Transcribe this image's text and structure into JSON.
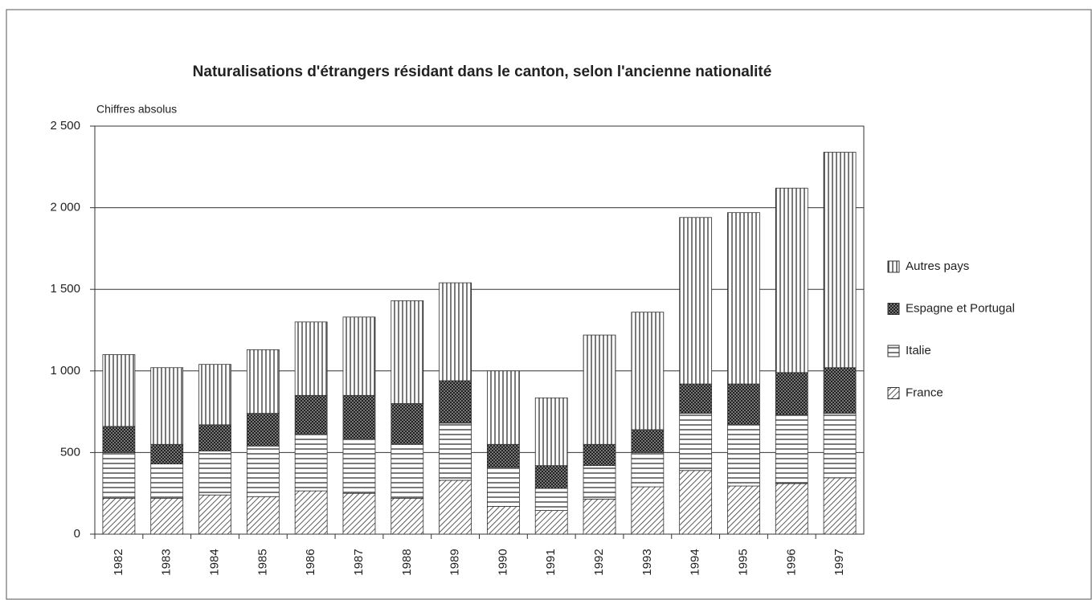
{
  "chart_data": {
    "type": "stacked-bar",
    "title": "Naturalisations d'étrangers résidant dans le canton, selon l'ancienne nationalité",
    "ylabel": "Chiffres absolus",
    "categories": [
      "1982",
      "1983",
      "1984",
      "1985",
      "1986",
      "1987",
      "1988",
      "1989",
      "1990",
      "1991",
      "1992",
      "1993",
      "1994",
      "1995",
      "1996",
      "1997"
    ],
    "series": [
      {
        "name": "France",
        "color": "#333333",
        "pattern": "diagonal",
        "values": [
          220,
          220,
          240,
          230,
          265,
          250,
          220,
          330,
          170,
          145,
          215,
          290,
          390,
          295,
          310,
          345
        ]
      },
      {
        "name": "Italie",
        "color": "#333333",
        "pattern": "horizontal",
        "values": [
          280,
          210,
          270,
          310,
          345,
          330,
          330,
          350,
          240,
          135,
          205,
          210,
          350,
          375,
          420,
          395
        ]
      },
      {
        "name": "Espagne et Portugal",
        "color": "#333333",
        "pattern": "crosshatch",
        "values": [
          160,
          120,
          160,
          200,
          240,
          270,
          250,
          260,
          140,
          140,
          130,
          140,
          180,
          250,
          260,
          280
        ]
      },
      {
        "name": "Autres pays",
        "color": "#333333",
        "pattern": "vertical",
        "values": [
          440,
          470,
          370,
          390,
          450,
          480,
          630,
          600,
          450,
          415,
          670,
          720,
          1020,
          1050,
          1130,
          1320
        ]
      }
    ],
    "ylim": [
      0,
      2500
    ],
    "yticks": [
      0,
      500,
      {
        "value": 1000,
        "label": "1 000"
      },
      {
        "value": 1500,
        "label": "1 500"
      },
      {
        "value": 2000,
        "label": "2 000"
      },
      {
        "value": 2500,
        "label": "2 500"
      }
    ],
    "grid": true,
    "legend": "right"
  }
}
